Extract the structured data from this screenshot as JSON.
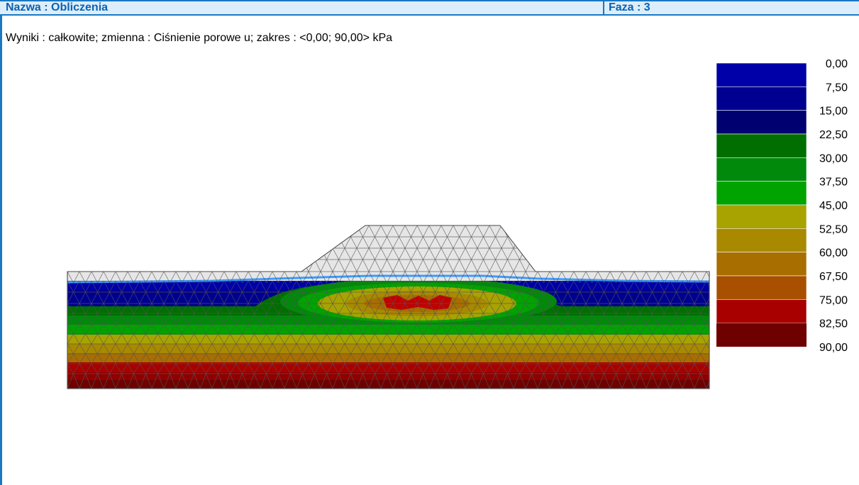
{
  "header": {
    "name_label": "Nazwa : Obliczenia",
    "phase_label": "Faza : 3"
  },
  "info_line": "Wyniki : całkowite; zmienna : Ciśnienie porowe u; zakres : <0,00; 90,00> kPa",
  "legend": {
    "labels": [
      "0,00",
      "7,50",
      "15,00",
      "22,50",
      "30,00",
      "37,50",
      "45,00",
      "52,50",
      "60,00",
      "67,50",
      "75,00",
      "82,50",
      "90,00"
    ],
    "colors": [
      "#0000a8",
      "#000090",
      "#000070",
      "#006e00",
      "#00890a",
      "#00a300",
      "#a8a300",
      "#a88900",
      "#a86e00",
      "#a85000",
      "#a80000",
      "#900000",
      "#6e0000"
    ]
  },
  "colors": {
    "frame_border": "#1a78c2",
    "title_text": "#0b62b3",
    "title_background": "#dceefb",
    "water_table": "#3a9bff",
    "embankment": "#e6e6e6",
    "mesh": "#555555"
  }
}
